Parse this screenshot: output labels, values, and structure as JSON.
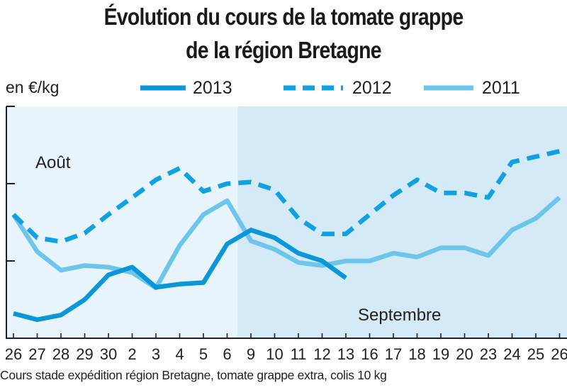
{
  "chart_data": {
    "type": "line",
    "title": "Évolution du cours de la tomate grappe",
    "subtitle": "de la région Bretagne",
    "ylabel": "en €/kg",
    "legend_position": "top",
    "ylim": [
      0,
      3
    ],
    "yticks": [
      1,
      2
    ],
    "grid": false,
    "categories": [
      "26",
      "27",
      "28",
      "29",
      "30",
      "2",
      "3",
      "4",
      "5",
      "6",
      "9",
      "10",
      "11",
      "12",
      "13",
      "16",
      "17",
      "18",
      "19",
      "20",
      "23",
      "24",
      "25",
      "26"
    ],
    "month_labels": [
      {
        "label": "Août",
        "first_index": 0
      },
      {
        "label": "Septembre",
        "first_index": 10
      }
    ],
    "series": [
      {
        "name": "2013",
        "style": "solid",
        "color": "#0a96d8",
        "values": [
          0.32,
          0.24,
          0.3,
          0.5,
          0.82,
          0.92,
          0.66,
          0.7,
          0.72,
          1.22,
          1.4,
          1.3,
          1.1,
          1.0,
          0.78,
          null,
          null,
          null,
          null,
          null,
          null,
          null,
          null,
          null
        ]
      },
      {
        "name": "2012",
        "style": "dashed",
        "color": "#12a1e0",
        "values": [
          1.6,
          1.3,
          1.25,
          1.36,
          1.6,
          1.82,
          2.05,
          2.2,
          1.9,
          2.0,
          2.02,
          1.92,
          1.55,
          1.35,
          1.35,
          1.6,
          1.85,
          2.05,
          1.88,
          1.88,
          1.82,
          2.28,
          2.35,
          2.42
        ]
      },
      {
        "name": "2011",
        "style": "solid",
        "color": "#6dc6ea",
        "values": [
          1.6,
          1.12,
          0.88,
          0.94,
          0.92,
          0.85,
          0.65,
          1.2,
          1.6,
          1.78,
          1.26,
          1.15,
          0.98,
          0.94,
          1.0,
          1.0,
          1.1,
          1.05,
          1.17,
          1.17,
          1.07,
          1.4,
          1.55,
          1.82
        ]
      }
    ],
    "colors": {
      "background_aout": "#e8f4fb",
      "background_septembre": "#d4ebf7",
      "axis": "#231f20"
    },
    "note": "Cours stade expédition région Bretagne, tomate grappe extra, colis 10 kg"
  }
}
